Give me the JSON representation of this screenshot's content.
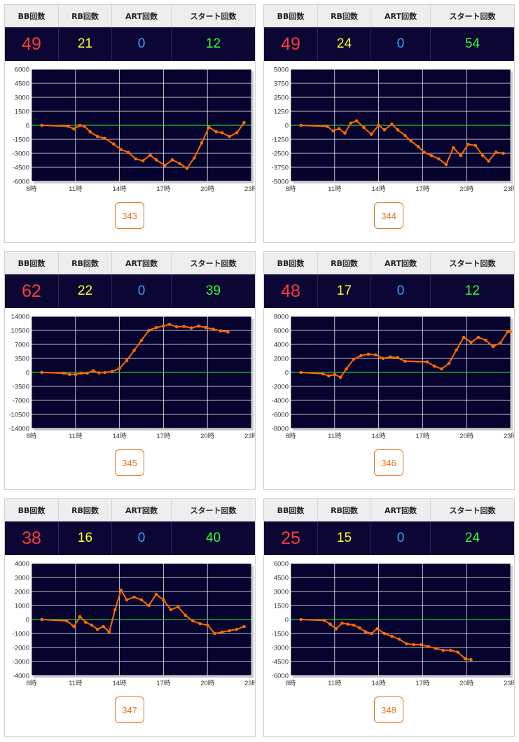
{
  "headers": {
    "bb": "BB回数",
    "rb": "RB回数",
    "art": "ART回数",
    "start": "スタート回数"
  },
  "colors": {
    "bb": "#ff3b3b",
    "rb": "#ffff33",
    "art": "#33a6ff",
    "start": "#33ff33",
    "line": "#ff6a00",
    "zero_line": "#22cc22",
    "plot_bg": "#06032e",
    "badge": "#e8731d"
  },
  "panels": [
    {
      "bb": "49",
      "rb": "21",
      "art": "0",
      "start": "12",
      "badge": "343"
    },
    {
      "bb": "49",
      "rb": "24",
      "art": "0",
      "start": "54",
      "badge": "344"
    },
    {
      "bb": "62",
      "rb": "22",
      "art": "0",
      "start": "39",
      "badge": "345"
    },
    {
      "bb": "48",
      "rb": "17",
      "art": "0",
      "start": "12",
      "badge": "346"
    },
    {
      "bb": "38",
      "rb": "16",
      "art": "0",
      "start": "40",
      "badge": "347"
    },
    {
      "bb": "25",
      "rb": "15",
      "art": "0",
      "start": "24",
      "badge": "348"
    }
  ],
  "chart_data": [
    {
      "type": "line",
      "x_ticks": [
        "8時",
        "11時",
        "14時",
        "17時",
        "20時",
        "23時"
      ],
      "xlim": [
        8,
        23
      ],
      "ylim": [
        -6000,
        6000
      ],
      "y_ticks": [
        "6000",
        "4500",
        "3000",
        "1500",
        "0",
        "-1500",
        "-3000",
        "-4500",
        "-6000"
      ],
      "series": [
        {
          "x": [
            8.7,
            10.5,
            10.9,
            11.3,
            11.6,
            12.0,
            12.5,
            13.0,
            13.6,
            14.1,
            14.6,
            15.1,
            15.6,
            16.1,
            16.5,
            17.1,
            17.6,
            18.1,
            18.6,
            19.1,
            19.6,
            20.1,
            20.6,
            21.0,
            21.5,
            22.0,
            22.5
          ],
          "y": [
            0,
            -100,
            -400,
            0,
            -100,
            -700,
            -1200,
            -1400,
            -2000,
            -2600,
            -2900,
            -3600,
            -3800,
            -3200,
            -3700,
            -4300,
            -3700,
            -4100,
            -4600,
            -3500,
            -1900,
            -200,
            -700,
            -800,
            -1200,
            -800,
            300
          ]
        }
      ]
    },
    {
      "type": "line",
      "x_ticks": [
        "8時",
        "11時",
        "14時",
        "17時",
        "20時",
        "23時"
      ],
      "xlim": [
        8,
        23
      ],
      "ylim": [
        -5000,
        5000
      ],
      "y_ticks": [
        "5000",
        "3750",
        "2500",
        "1250",
        "0",
        "-1250",
        "-2500",
        "-3750",
        "-5000"
      ],
      "series": [
        {
          "x": [
            8.7,
            10.5,
            10.9,
            11.3,
            11.7,
            12.1,
            12.5,
            13.0,
            13.5,
            14.0,
            14.4,
            14.9,
            15.3,
            15.8,
            16.2,
            16.7,
            17.1,
            17.6,
            18.1,
            18.6,
            19.1,
            19.6,
            20.1,
            20.6,
            21.1,
            21.5,
            22.0,
            22.5
          ],
          "y": [
            0,
            -100,
            -500,
            -300,
            -700,
            200,
            400,
            -200,
            -800,
            0,
            -400,
            100,
            -400,
            -900,
            -1400,
            -1900,
            -2400,
            -2700,
            -3000,
            -3500,
            -2000,
            -2700,
            -1700,
            -1800,
            -2700,
            -3200,
            -2400,
            -2500
          ]
        }
      ]
    },
    {
      "type": "line",
      "x_ticks": [
        "8時",
        "11時",
        "14時",
        "17時",
        "20時",
        "23時"
      ],
      "xlim": [
        8,
        23
      ],
      "ylim": [
        -14000,
        14000
      ],
      "y_ticks": [
        "14000",
        "10500",
        "7000",
        "3500",
        "0",
        "-3500",
        "-7000",
        "-10500",
        "-14000"
      ],
      "series": [
        {
          "x": [
            8.7,
            10.2,
            10.6,
            11.0,
            11.4,
            11.8,
            12.2,
            12.6,
            13.0,
            13.5,
            14.0,
            14.5,
            15.0,
            15.5,
            16.0,
            16.5,
            17.0,
            17.4,
            17.9,
            18.4,
            18.9,
            19.4,
            19.9,
            20.4,
            20.9,
            21.4
          ],
          "y": [
            0,
            -200,
            -500,
            -500,
            -200,
            -200,
            400,
            -100,
            0,
            200,
            1000,
            3000,
            5500,
            8000,
            10500,
            11200,
            11600,
            12000,
            11400,
            11500,
            11100,
            11600,
            11200,
            10800,
            10400,
            10100
          ]
        }
      ]
    },
    {
      "type": "line",
      "x_ticks": [
        "8時",
        "11時",
        "14時",
        "17時",
        "20時",
        "23時"
      ],
      "xlim": [
        8,
        23
      ],
      "ylim": [
        -8000,
        8000
      ],
      "y_ticks": [
        "8000",
        "6000",
        "4000",
        "2000",
        "0",
        "-2000",
        "-4000",
        "-6000",
        "-8000"
      ],
      "series": [
        {
          "x": [
            8.7,
            10.2,
            10.6,
            11.0,
            11.4,
            11.8,
            12.3,
            12.8,
            13.3,
            13.8,
            14.3,
            14.8,
            15.3,
            15.8,
            17.3,
            17.8,
            18.3,
            18.8,
            19.3,
            19.8,
            20.3,
            20.8,
            21.3,
            21.8,
            22.3,
            22.8,
            23.0
          ],
          "y": [
            0,
            -200,
            -500,
            -300,
            -700,
            500,
            1900,
            2400,
            2600,
            2500,
            2000,
            2200,
            2100,
            1600,
            1500,
            900,
            500,
            1300,
            3200,
            5000,
            4300,
            5000,
            4600,
            3700,
            4200,
            5800,
            5800
          ]
        }
      ]
    },
    {
      "type": "line",
      "x_ticks": [
        "8時",
        "11時",
        "14時",
        "17時",
        "20時",
        "23時"
      ],
      "xlim": [
        8,
        23
      ],
      "ylim": [
        -4000,
        4000
      ],
      "y_ticks": [
        "4000",
        "3000",
        "2000",
        "1000",
        "0",
        "-1000",
        "-2000",
        "-3000",
        "-4000"
      ],
      "series": [
        {
          "x": [
            8.7,
            10.4,
            10.9,
            11.3,
            11.7,
            12.1,
            12.5,
            12.9,
            13.3,
            13.7,
            14.1,
            14.5,
            15.0,
            15.5,
            16.0,
            16.5,
            17.0,
            17.5,
            18.0,
            18.5,
            19.0,
            19.5,
            20.0,
            20.5,
            21.0,
            21.5,
            22.0,
            22.5
          ],
          "y": [
            0,
            -100,
            -500,
            200,
            -200,
            -400,
            -700,
            -500,
            -900,
            700,
            2100,
            1400,
            1600,
            1400,
            1000,
            1800,
            1400,
            700,
            900,
            300,
            -100,
            -300,
            -400,
            -1000,
            -900,
            -800,
            -700,
            -500
          ]
        }
      ]
    },
    {
      "type": "line",
      "x_ticks": [
        "8時",
        "11時",
        "14時",
        "17時",
        "20時",
        "23時"
      ],
      "xlim": [
        8,
        23
      ],
      "ylim": [
        -6000,
        6000
      ],
      "y_ticks": [
        "6000",
        "4500",
        "3000",
        "1500",
        "0",
        "-1500",
        "-3000",
        "-4500",
        "-6000"
      ],
      "series": [
        {
          "x": [
            8.7,
            10.3,
            10.7,
            11.1,
            11.5,
            11.9,
            12.3,
            12.7,
            13.1,
            13.5,
            13.9,
            14.4,
            14.9,
            15.4,
            15.9,
            16.4,
            16.9,
            17.4,
            17.9,
            18.4,
            18.9,
            19.4,
            19.9,
            20.3
          ],
          "y": [
            0,
            -100,
            -500,
            -1000,
            -400,
            -500,
            -600,
            -900,
            -1300,
            -1500,
            -1000,
            -1500,
            -1800,
            -2100,
            -2600,
            -2700,
            -2700,
            -2900,
            -3100,
            -3300,
            -3300,
            -3500,
            -4200,
            -4300
          ]
        }
      ]
    }
  ]
}
